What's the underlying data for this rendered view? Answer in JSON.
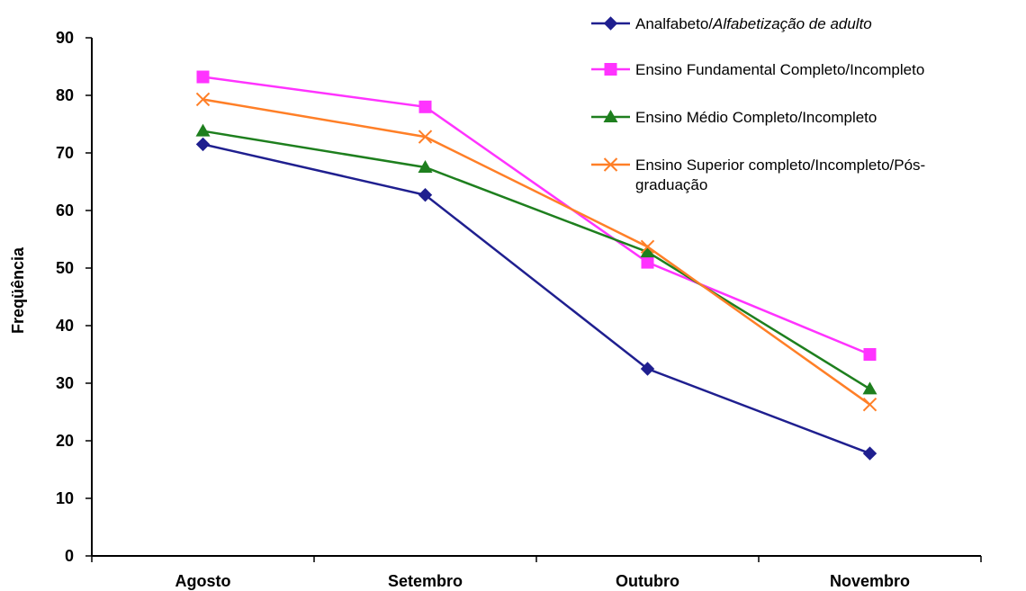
{
  "chart_data": {
    "type": "line",
    "categories": [
      "Agosto",
      "Setembro",
      "Outubro",
      "Novembro"
    ],
    "ylabel": "Freqüência",
    "ylim": [
      0,
      90
    ],
    "yticks": [
      0,
      10,
      20,
      30,
      40,
      50,
      60,
      70,
      80,
      90
    ],
    "grid": false,
    "legend_position": "top-right",
    "series": [
      {
        "name": "Analfabeto/Alfabetização de adulto",
        "color": "#1F1F8F",
        "marker": "diamond",
        "values": [
          71.5,
          62.7,
          32.5,
          17.8
        ]
      },
      {
        "name": "Ensino Fundamental Completo/Incompleto",
        "color": "#FF33FF",
        "marker": "square",
        "values": [
          83.2,
          78,
          51,
          35
        ]
      },
      {
        "name": "Ensino Médio Completo/Incompleto",
        "color": "#1E7F1E",
        "marker": "triangle",
        "values": [
          73.8,
          67.5,
          52.8,
          29
        ]
      },
      {
        "name": "Ensino Superior completo/Incompleto/Pós-graduação",
        "color": "#FF7F27",
        "marker": "x",
        "values": [
          79.3,
          72.8,
          53.7,
          26.3
        ]
      }
    ]
  }
}
